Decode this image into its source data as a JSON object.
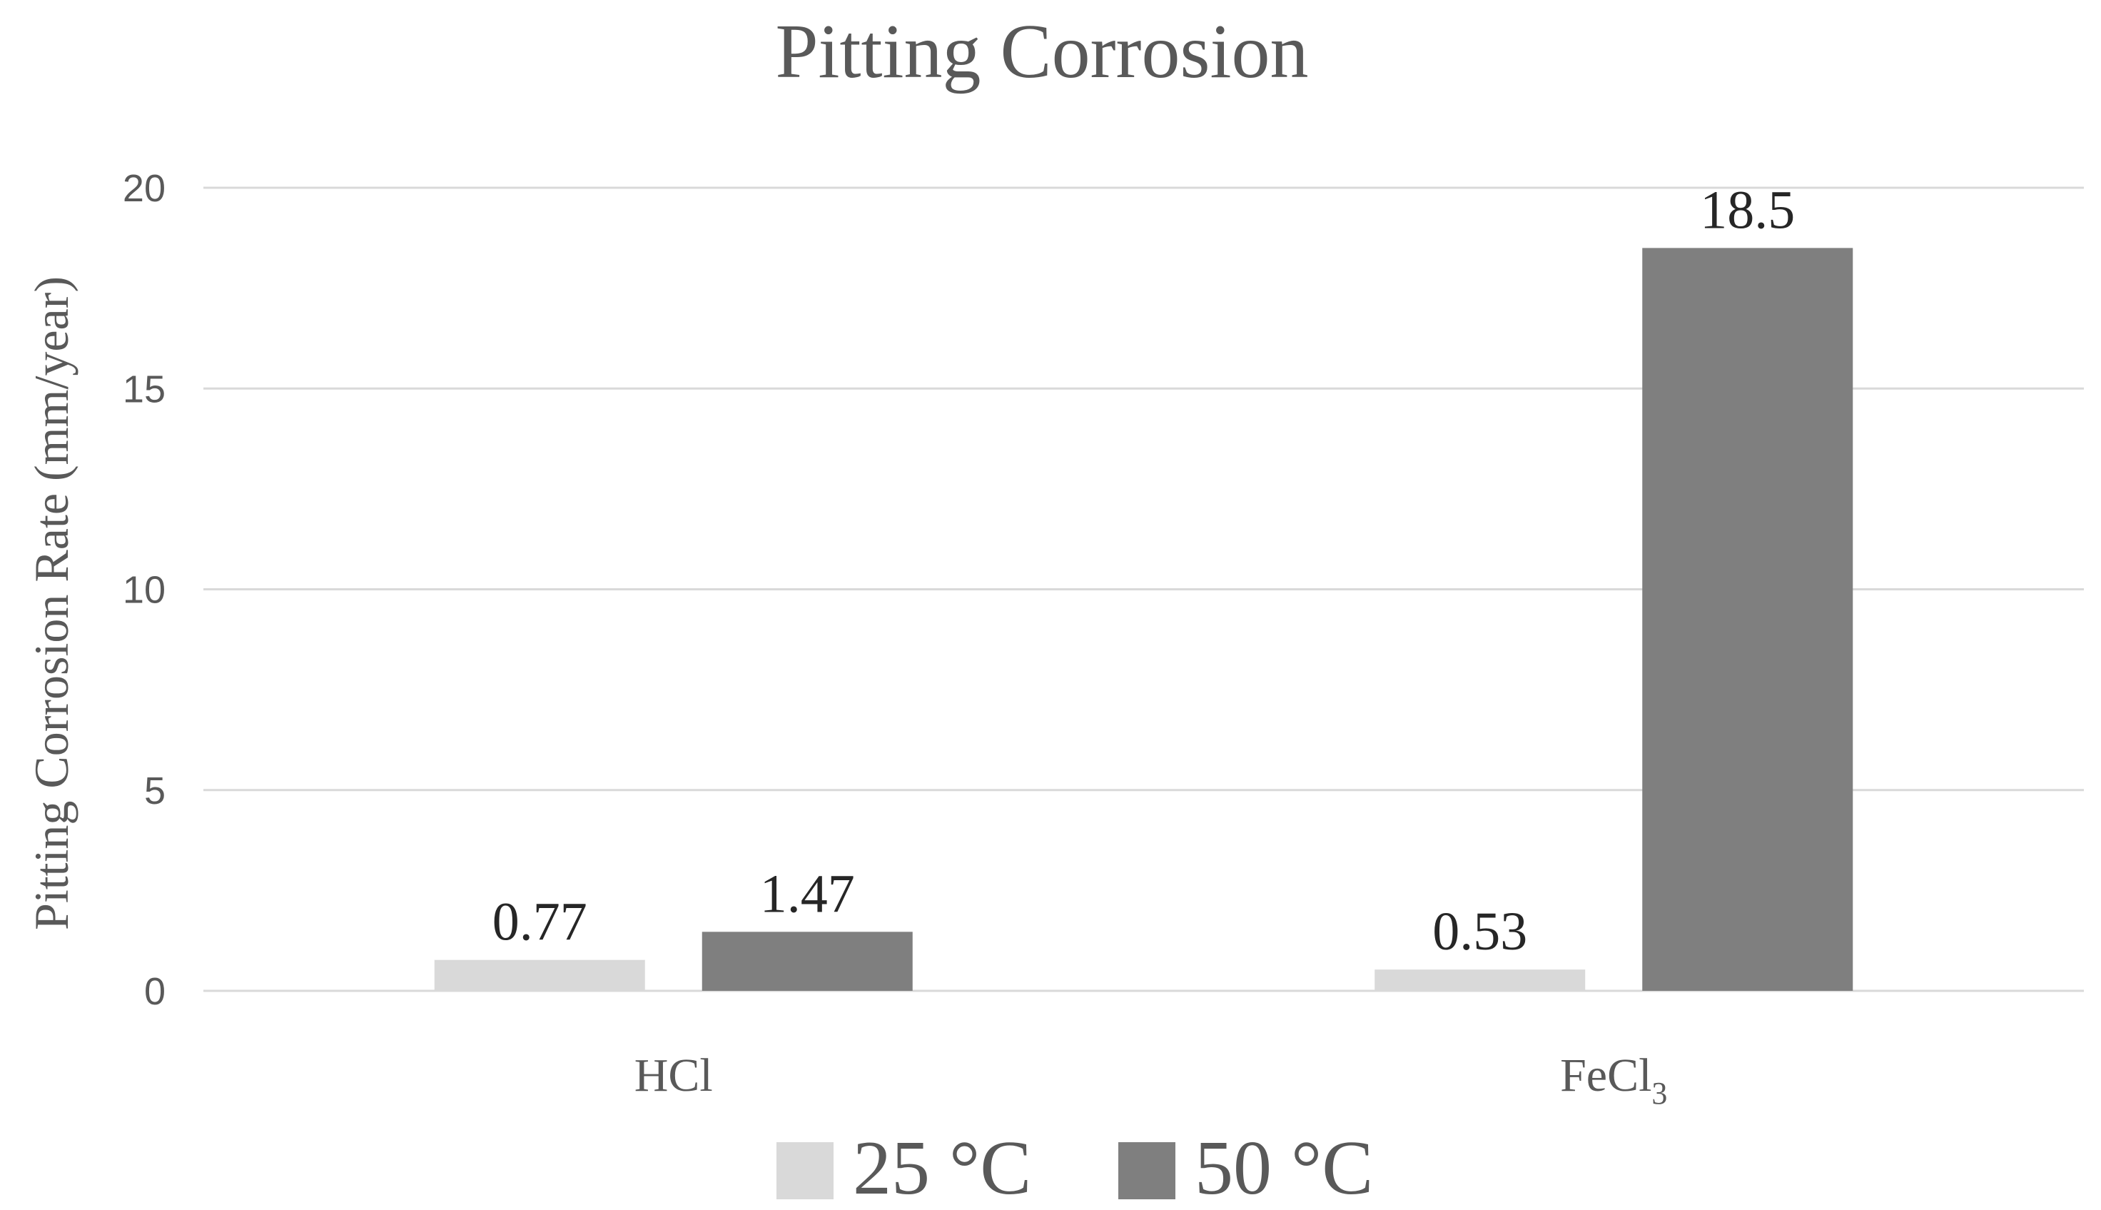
{
  "chart_data": {
    "type": "bar",
    "title": "Pitting Corrosion",
    "ylabel": "Pitting Corrosion Rate (mm/year)",
    "xlabel": "",
    "ylim": [
      0,
      20
    ],
    "yticks": [
      0,
      5,
      10,
      15,
      20
    ],
    "grid": true,
    "legend_position": "bottom",
    "categories": [
      {
        "base": "HCl",
        "subscript": ""
      },
      {
        "base": "FeCl",
        "subscript": "3"
      }
    ],
    "series": [
      {
        "name": "25 °C",
        "color": "#d9d9d9",
        "values": [
          0.77,
          0.53
        ],
        "labels": [
          "0.77",
          "0.53"
        ]
      },
      {
        "name": "50 °C",
        "color": "#7f7f7f",
        "values": [
          1.47,
          18.5
        ],
        "labels": [
          "1.47",
          "18.5"
        ]
      }
    ]
  }
}
